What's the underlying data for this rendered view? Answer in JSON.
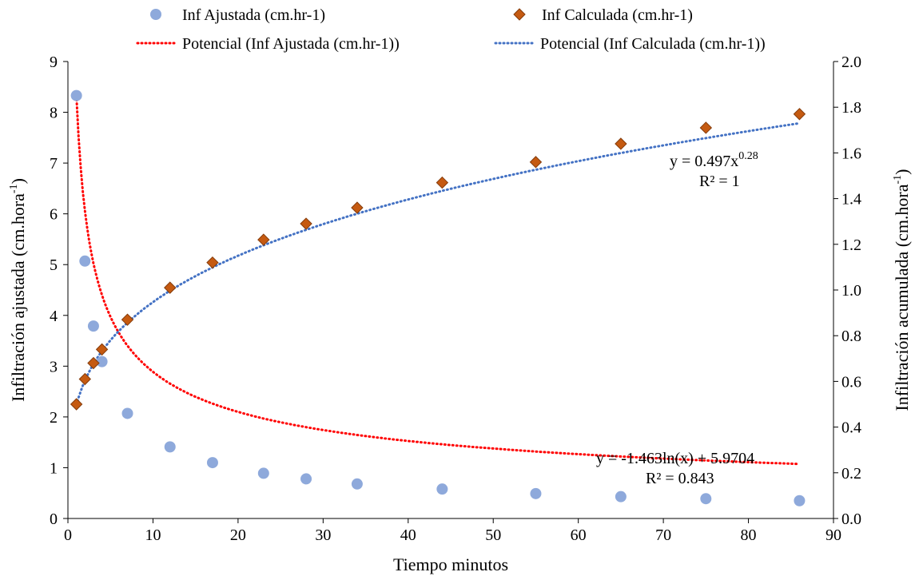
{
  "chart_data": {
    "type": "scatter",
    "legend_position": "top",
    "grid": false,
    "xlabel": "Tiempo minutos",
    "ylabel": {
      "main": "Infiltración ajustada (cm.hora",
      "sup": "-1",
      "close": ")"
    },
    "y2label": {
      "main": "Infiltración acumulada (cm.hora",
      "sup": "-1",
      "close": ")"
    },
    "xlim": [
      0,
      90
    ],
    "ylim": [
      0,
      9
    ],
    "y2lim": [
      0.0,
      2.0
    ],
    "x_ticks": [
      "0",
      "10",
      "20",
      "30",
      "40",
      "50",
      "60",
      "70",
      "80",
      "90"
    ],
    "y_ticks": [
      "0",
      "1",
      "2",
      "3",
      "4",
      "5",
      "6",
      "7",
      "8",
      "9"
    ],
    "y2_ticks": [
      "0.0",
      "0.2",
      "0.4",
      "0.6",
      "0.8",
      "1.0",
      "1.2",
      "1.4",
      "1.6",
      "1.8",
      "2.0"
    ],
    "series": [
      {
        "name": "Inf Ajustada (cm.hr-1)",
        "axis": "left",
        "marker": "circle",
        "color": "#8EA9DB",
        "x": [
          1,
          2,
          3,
          4,
          7,
          12,
          17,
          23,
          28,
          34,
          44,
          55,
          65,
          75,
          86
        ],
        "y": [
          8.33,
          5.07,
          3.79,
          3.09,
          2.07,
          1.41,
          1.1,
          0.89,
          0.78,
          0.68,
          0.58,
          0.49,
          0.43,
          0.39,
          0.35
        ]
      },
      {
        "name": "Inf Calculada (cm.hr-1)",
        "axis": "right",
        "marker": "diamond",
        "color": "#C55A11",
        "x": [
          1,
          2,
          3,
          4,
          7,
          12,
          17,
          23,
          28,
          34,
          44,
          55,
          65,
          75,
          86
        ],
        "y": [
          0.5,
          0.61,
          0.68,
          0.74,
          0.87,
          1.01,
          1.12,
          1.22,
          1.29,
          1.36,
          1.47,
          1.56,
          1.64,
          1.71,
          1.77
        ]
      }
    ],
    "trendlines": [
      {
        "name": "Potencial (Inf Ajustada (cm.hr-1))",
        "axis": "left",
        "color": "#FF0000",
        "coef": 8.33,
        "exp": -0.46,
        "style": "dotted"
      },
      {
        "name": "Potencial (Inf Calculada (cm.hr-1))",
        "axis": "right",
        "color": "#4472C4",
        "coef": 0.497,
        "exp": 0.28,
        "style": "dotted"
      }
    ],
    "annotations": {
      "eq1": {
        "base": "y = 0.497x",
        "sup": "0.28",
        "r2": "R² = 1"
      },
      "eq2": {
        "text": "y = -1.463ln(x) + 5.9704",
        "r2": "R² = 0.843"
      }
    }
  }
}
